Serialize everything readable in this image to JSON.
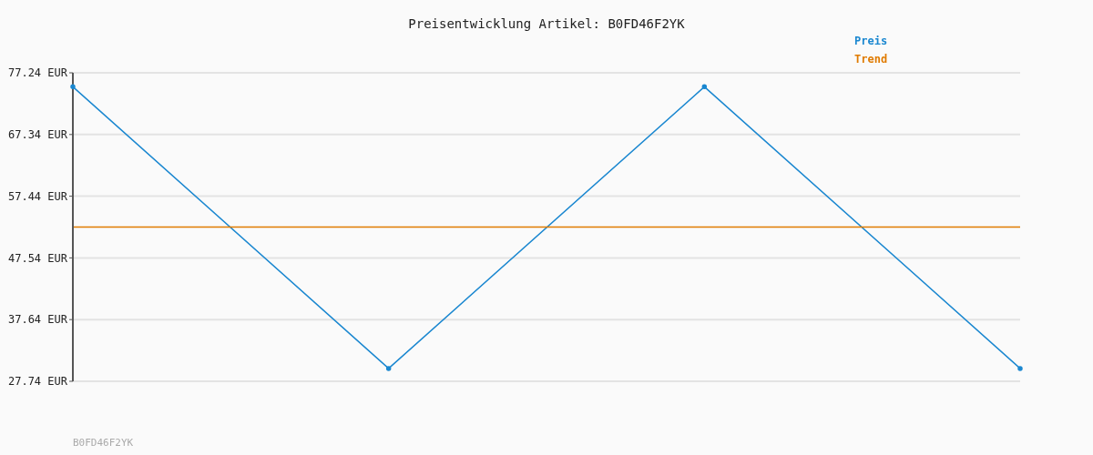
{
  "chart_data": {
    "type": "line",
    "title": "Preisentwicklung Artikel: B0FD46F2YK",
    "categories": [
      null,
      null,
      null,
      null
    ],
    "series": [
      {
        "name": "Preis",
        "color": "#1a87d0",
        "values": [
          75.0,
          29.8,
          75.0,
          29.8
        ],
        "marker": "circle"
      },
      {
        "name": "Trend",
        "color": "#e07b00",
        "values": [
          52.5,
          52.5,
          52.5,
          52.5
        ]
      }
    ],
    "ylim": [
      27.74,
      77.24
    ],
    "yticks": [
      {
        "value": 27.74,
        "label": "27.74 EUR"
      },
      {
        "value": 37.64,
        "label": "37.64 EUR"
      },
      {
        "value": 47.54,
        "label": "47.54 EUR"
      },
      {
        "value": 57.44,
        "label": "57.44 EUR"
      },
      {
        "value": 67.34,
        "label": "67.34 EUR"
      },
      {
        "value": 77.24,
        "label": "77.24 EUR"
      }
    ],
    "grid": "y",
    "legend": "top right",
    "annotations": [
      "B0FD46F2YK"
    ]
  }
}
